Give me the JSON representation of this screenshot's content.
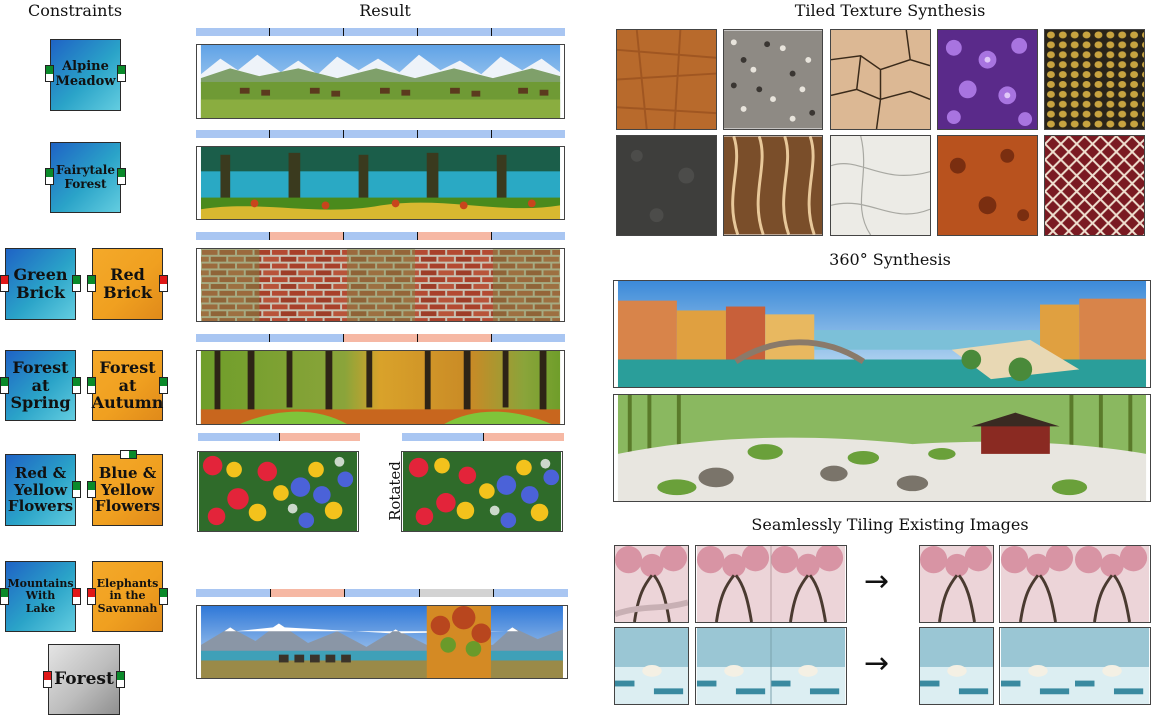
{
  "headers": {
    "constraints": "Constraints",
    "result": "Result",
    "tiled": "Tiled Texture Synthesis",
    "synthesis360": "360° Synthesis",
    "seamless": "Seamlessly Tiling Existing Images"
  },
  "tiles": {
    "alpine": "Alpine\nMeadow",
    "fairytale": "Fairytale\nForest",
    "green_brick": "Green\nBrick",
    "red_brick": "Red\nBrick",
    "forest_spring": "Forest\nat\nSpring",
    "forest_autumn": "Forest\nat\nAutumn",
    "red_yellow": "Red &\nYellow\nFlowers",
    "blue_yellow": "Blue &\nYellow\nFlowers",
    "mountains": "Mountains\nWith\nLake",
    "elephants": "Elephants\nin the\nSavannah",
    "forest": "Forest"
  },
  "rotated_label": "Rotated",
  "arrow": "→",
  "colors": {
    "blue_bar": "#a9c6f2",
    "salmon_bar": "#f6b8a4",
    "gray_bar": "#d3d3d3",
    "port_green": "#0a8a2a",
    "port_red": "#e01818",
    "port_white": "#ffffff"
  }
}
